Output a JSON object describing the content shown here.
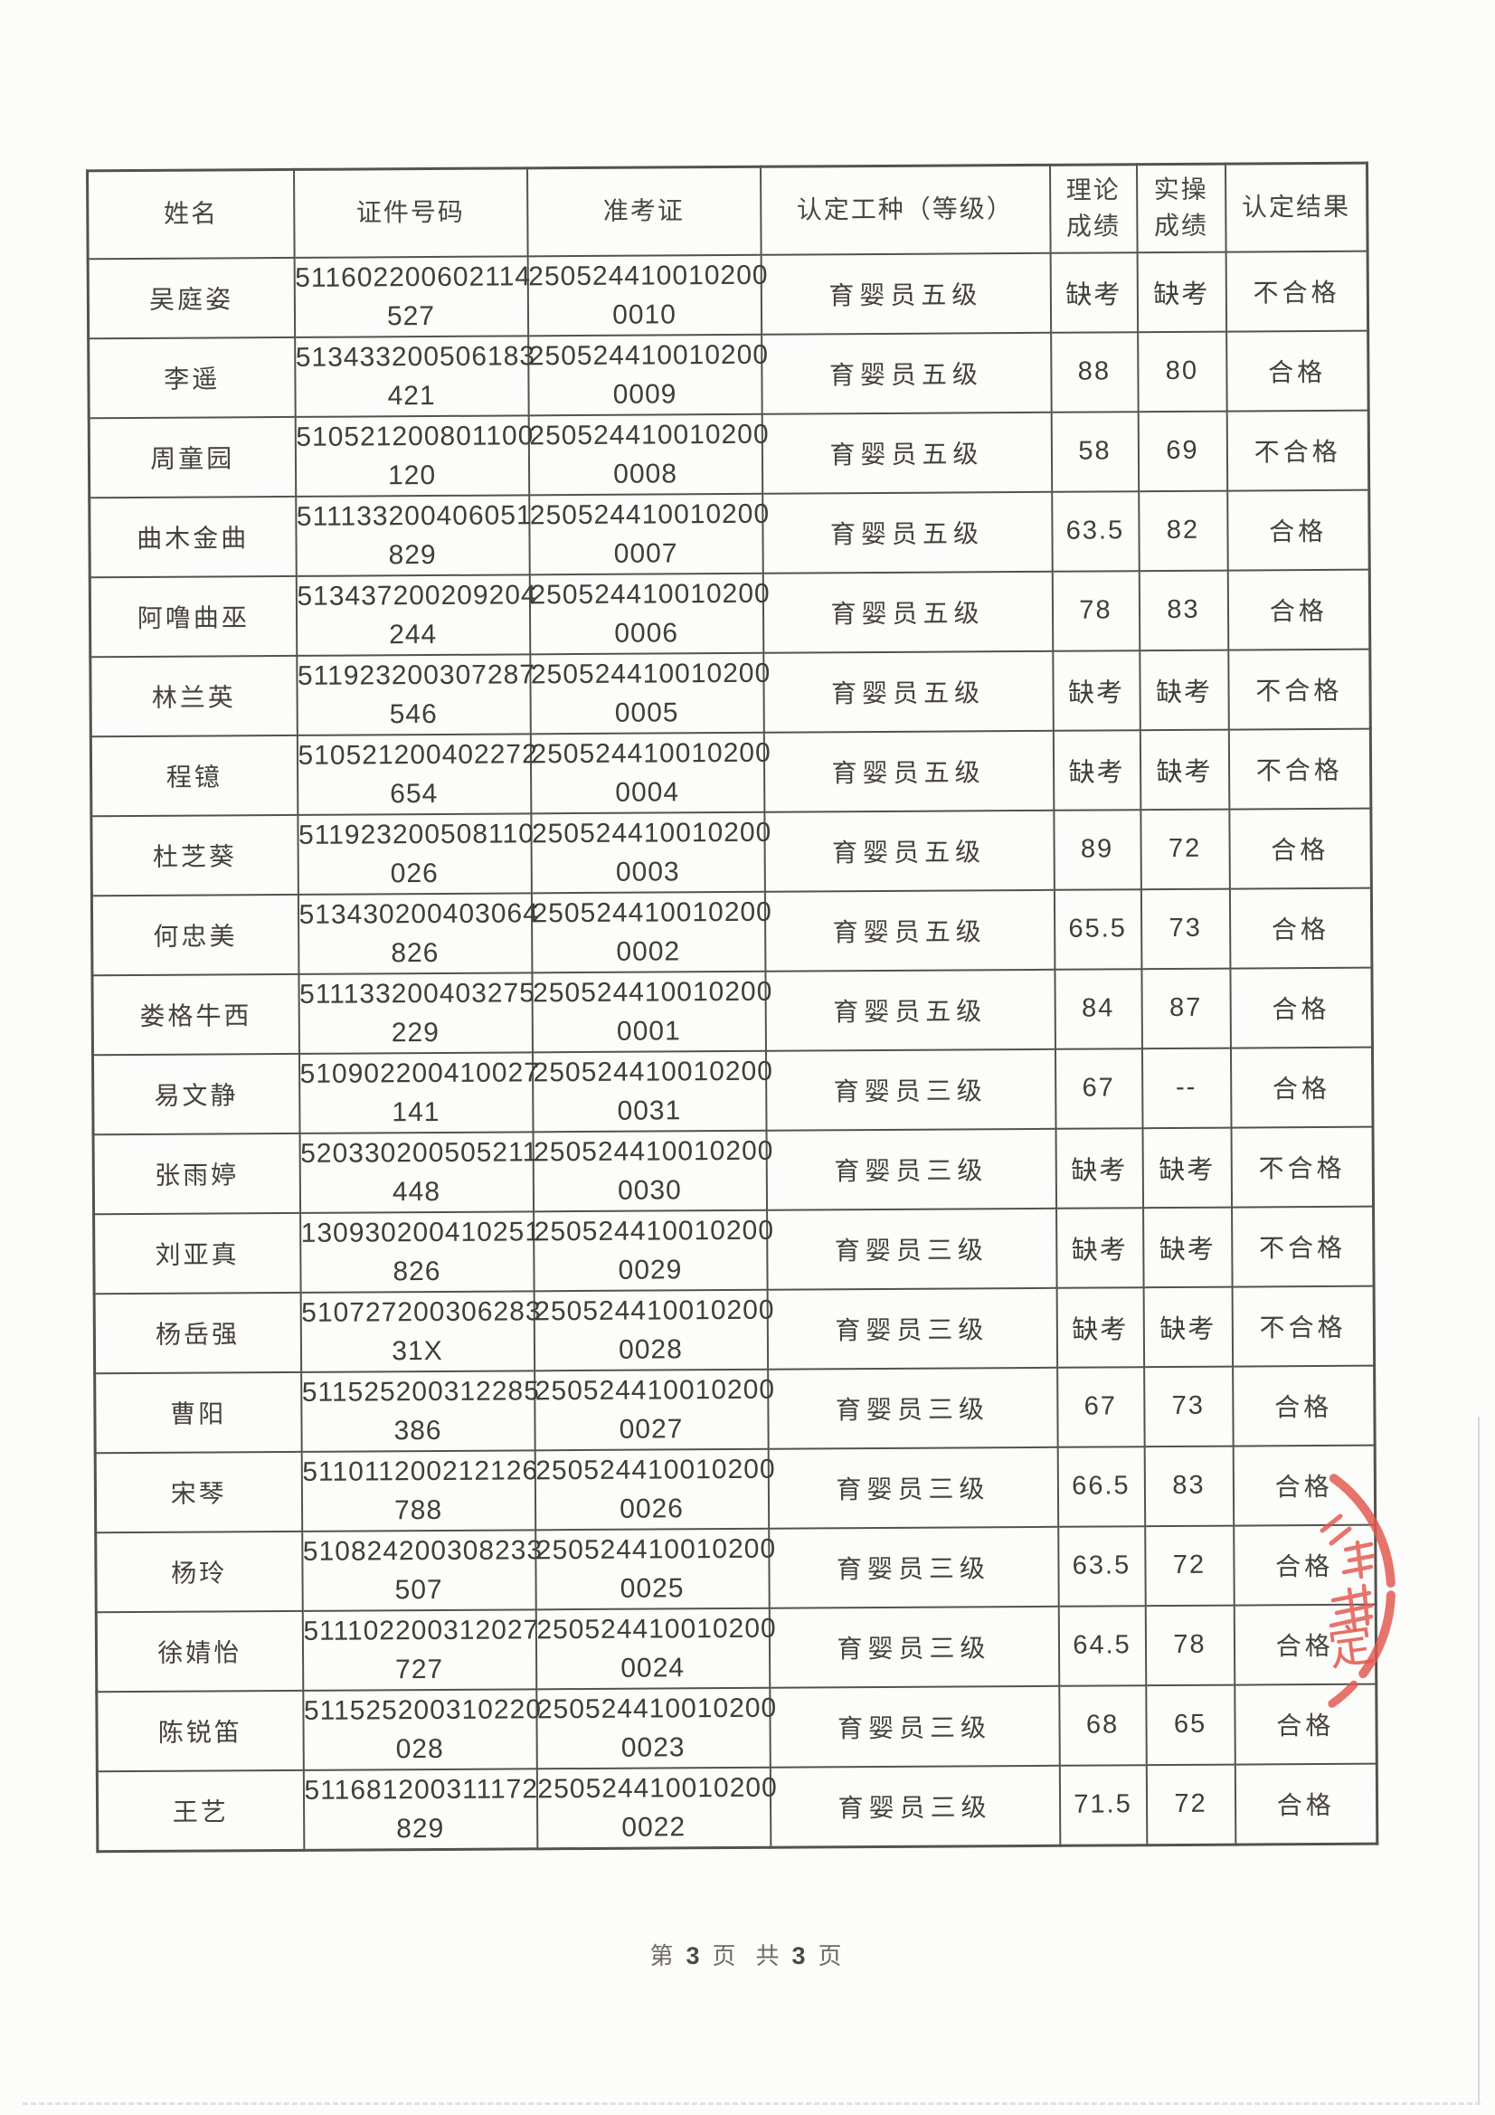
{
  "table": {
    "headers": [
      "姓名",
      "证件号码",
      "准考证",
      "认定工种（等级）",
      "理论成绩",
      "实操成绩",
      "认定结果"
    ],
    "rows": [
      {
        "name": "吴庭姿",
        "id_number": "511602200602114527",
        "exam_ticket": "2505244100102000010",
        "occupation_level": "育婴员五级",
        "theory_score": "缺考",
        "practical_score": "缺考",
        "result": "不合格"
      },
      {
        "name": "李遥",
        "id_number": "513433200506183421",
        "exam_ticket": "2505244100102000009",
        "occupation_level": "育婴员五级",
        "theory_score": "88",
        "practical_score": "80",
        "result": "合格"
      },
      {
        "name": "周童园",
        "id_number": "510521200801100120",
        "exam_ticket": "2505244100102000008",
        "occupation_level": "育婴员五级",
        "theory_score": "58",
        "practical_score": "69",
        "result": "不合格"
      },
      {
        "name": "曲木金曲",
        "id_number": "511133200406051829",
        "exam_ticket": "2505244100102000007",
        "occupation_level": "育婴员五级",
        "theory_score": "63.5",
        "practical_score": "82",
        "result": "合格"
      },
      {
        "name": "阿噜曲巫",
        "id_number": "513437200209204244",
        "exam_ticket": "2505244100102000006",
        "occupation_level": "育婴员五级",
        "theory_score": "78",
        "practical_score": "83",
        "result": "合格"
      },
      {
        "name": "林兰英",
        "id_number": "511923200307287546",
        "exam_ticket": "2505244100102000005",
        "occupation_level": "育婴员五级",
        "theory_score": "缺考",
        "practical_score": "缺考",
        "result": "不合格"
      },
      {
        "name": "程镱",
        "id_number": "510521200402272654",
        "exam_ticket": "2505244100102000004",
        "occupation_level": "育婴员五级",
        "theory_score": "缺考",
        "practical_score": "缺考",
        "result": "不合格"
      },
      {
        "name": "杜芝葵",
        "id_number": "511923200508110026",
        "exam_ticket": "2505244100102000003",
        "occupation_level": "育婴员五级",
        "theory_score": "89",
        "practical_score": "72",
        "result": "合格"
      },
      {
        "name": "何忠美",
        "id_number": "513430200403064826",
        "exam_ticket": "2505244100102000002",
        "occupation_level": "育婴员五级",
        "theory_score": "65.5",
        "practical_score": "73",
        "result": "合格"
      },
      {
        "name": "娄格牛西",
        "id_number": "511133200403275229",
        "exam_ticket": "2505244100102000001",
        "occupation_level": "育婴员五级",
        "theory_score": "84",
        "practical_score": "87",
        "result": "合格"
      },
      {
        "name": "易文静",
        "id_number": "510902200410027141",
        "exam_ticket": "2505244100102000031",
        "occupation_level": "育婴员三级",
        "theory_score": "67",
        "practical_score": "--",
        "result": "合格"
      },
      {
        "name": "张雨婷",
        "id_number": "520330200505211448",
        "exam_ticket": "2505244100102000030",
        "occupation_level": "育婴员三级",
        "theory_score": "缺考",
        "practical_score": "缺考",
        "result": "不合格"
      },
      {
        "name": "刘亚真",
        "id_number": "130930200410251826",
        "exam_ticket": "2505244100102000029",
        "occupation_level": "育婴员三级",
        "theory_score": "缺考",
        "practical_score": "缺考",
        "result": "不合格"
      },
      {
        "name": "杨岳强",
        "id_number": "51072720030628331X",
        "exam_ticket": "2505244100102000028",
        "occupation_level": "育婴员三级",
        "theory_score": "缺考",
        "practical_score": "缺考",
        "result": "不合格"
      },
      {
        "name": "曹阳",
        "id_number": "511525200312285386",
        "exam_ticket": "2505244100102000027",
        "occupation_level": "育婴员三级",
        "theory_score": "67",
        "practical_score": "73",
        "result": "合格"
      },
      {
        "name": "宋琴",
        "id_number": "511011200212126788",
        "exam_ticket": "2505244100102000026",
        "occupation_level": "育婴员三级",
        "theory_score": "66.5",
        "practical_score": "83",
        "result": "合格"
      },
      {
        "name": "杨玲",
        "id_number": "510824200308233507",
        "exam_ticket": "2505244100102000025",
        "occupation_level": "育婴员三级",
        "theory_score": "63.5",
        "practical_score": "72",
        "result": "合格"
      },
      {
        "name": "徐婧怡",
        "id_number": "511102200312027727",
        "exam_ticket": "2505244100102000024",
        "occupation_level": "育婴员三级",
        "theory_score": "64.5",
        "practical_score": "78",
        "result": "合格"
      },
      {
        "name": "陈锐笛",
        "id_number": "511525200310220028",
        "exam_ticket": "2505244100102000023",
        "occupation_level": "育婴员三级",
        "theory_score": "68",
        "practical_score": "65",
        "result": "合格"
      },
      {
        "name": "王艺",
        "id_number": "511681200311172829",
        "exam_ticket": "2505244100102000022",
        "occupation_level": "育婴员三级",
        "theory_score": "71.5",
        "practical_score": "72",
        "result": "合格"
      }
    ]
  },
  "footer": {
    "p1": "第",
    "page_no": "3",
    "p2": "页",
    "p3": "共",
    "total_pages": "3",
    "p4": "页"
  },
  "stamp": {
    "visible_text": "定",
    "color": "#e2574d"
  }
}
